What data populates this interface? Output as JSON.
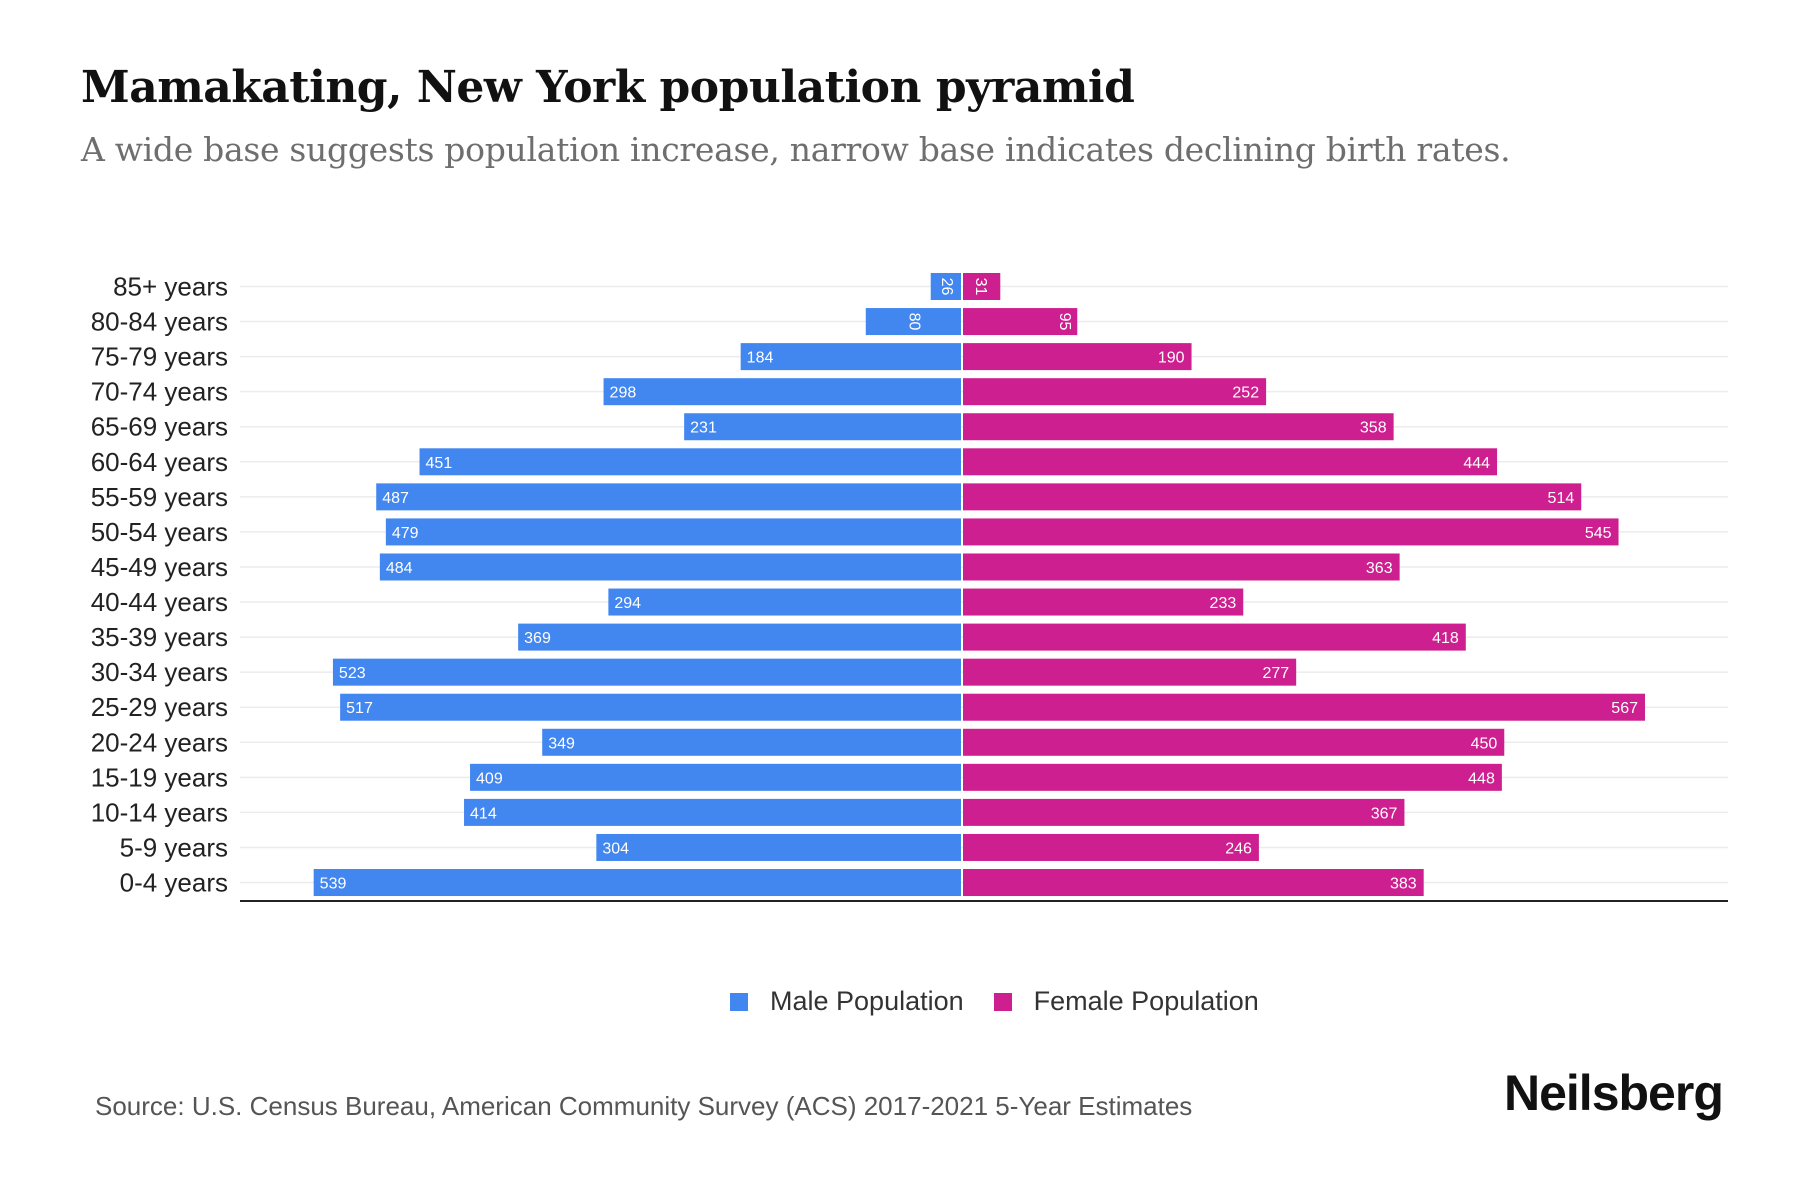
{
  "chart_data": {
    "type": "bar",
    "orientation": "horizontal-pyramid",
    "title": "Mamakating, New York population pyramid",
    "subtitle": "A wide base suggests population increase, narrow base indicates declining birth rates.",
    "xlabel": "",
    "ylabel": "",
    "grid": true,
    "legend_position": "bottom-center",
    "categories": [
      "85+ years",
      "80-84 years",
      "75-79 years",
      "70-74 years",
      "65-69 years",
      "60-64 years",
      "55-59 years",
      "50-54 years",
      "45-49 years",
      "40-44 years",
      "35-39 years",
      "30-34 years",
      "25-29 years",
      "20-24 years",
      "15-19 years",
      "10-14 years",
      "5-9 years",
      "0-4 years"
    ],
    "series": [
      {
        "name": "Male Population",
        "color": "#4286F0",
        "side": "left",
        "values": [
          26,
          80,
          184,
          298,
          231,
          451,
          487,
          479,
          484,
          294,
          369,
          523,
          517,
          349,
          409,
          414,
          304,
          539
        ]
      },
      {
        "name": "Female Population",
        "color": "#CD1F8F",
        "side": "right",
        "values": [
          31,
          95,
          190,
          252,
          358,
          444,
          514,
          545,
          363,
          233,
          418,
          277,
          567,
          450,
          448,
          367,
          246,
          383
        ]
      }
    ],
    "xlim": [
      -567,
      567
    ],
    "rotated_labels_below": 100
  },
  "legend": {
    "male_label": "Male Population",
    "female_label": "Female Population"
  },
  "footer": {
    "source": "Source: U.S. Census Bureau, American Community Survey (ACS) 2017-2021 5-Year Estimates",
    "brand": "Neilsberg"
  }
}
